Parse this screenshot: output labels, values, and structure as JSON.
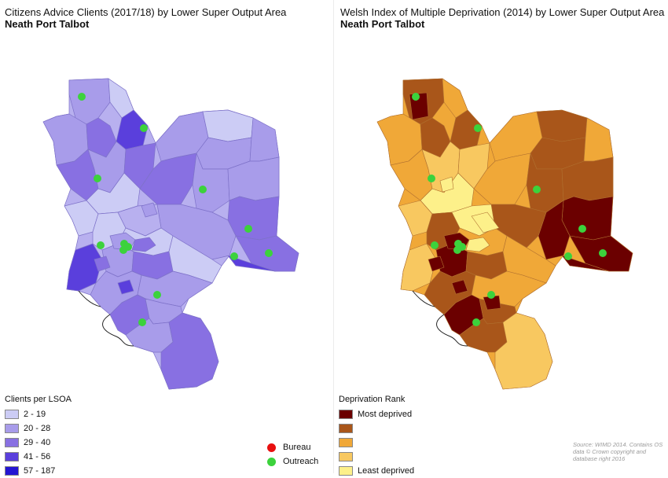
{
  "left_map": {
    "title": "Citizens Advice Clients (2017/18) by Lower Super Output Area",
    "subtitle": "Neath Port Talbot",
    "legend": {
      "title": "Clients per LSOA",
      "items": [
        {
          "label": "2 - 19",
          "color": "#ccccf5"
        },
        {
          "label": "20 - 28",
          "color": "#a89cea"
        },
        {
          "label": "29 - 40",
          "color": "#8870e2"
        },
        {
          "label": "41 - 56",
          "color": "#5a3fdc"
        },
        {
          "label": "57 - 187",
          "color": "#2315d2"
        }
      ]
    }
  },
  "right_map": {
    "title": "Welsh Index of Multiple Deprivation (2014) by Lower Super Output Area",
    "subtitle": "Neath Port Talbot",
    "legend": {
      "title": "Deprivation Rank",
      "items": [
        {
          "label": "Most deprived",
          "color": "#6b0000"
        },
        {
          "label": "",
          "color": "#a9561a"
        },
        {
          "label": "",
          "color": "#f0a838"
        },
        {
          "label": "",
          "color": "#f8c860"
        },
        {
          "label": "Least deprived",
          "color": "#fdf08a"
        }
      ]
    }
  },
  "point_legend": {
    "items": [
      {
        "label": "Bureau",
        "color": "#e81010"
      },
      {
        "label": "Outreach",
        "color": "#3cd23c"
      }
    ]
  },
  "source": {
    "text": "Source: WIMD 2014. Contains OS data © Crown copyright and database right 2016"
  }
}
